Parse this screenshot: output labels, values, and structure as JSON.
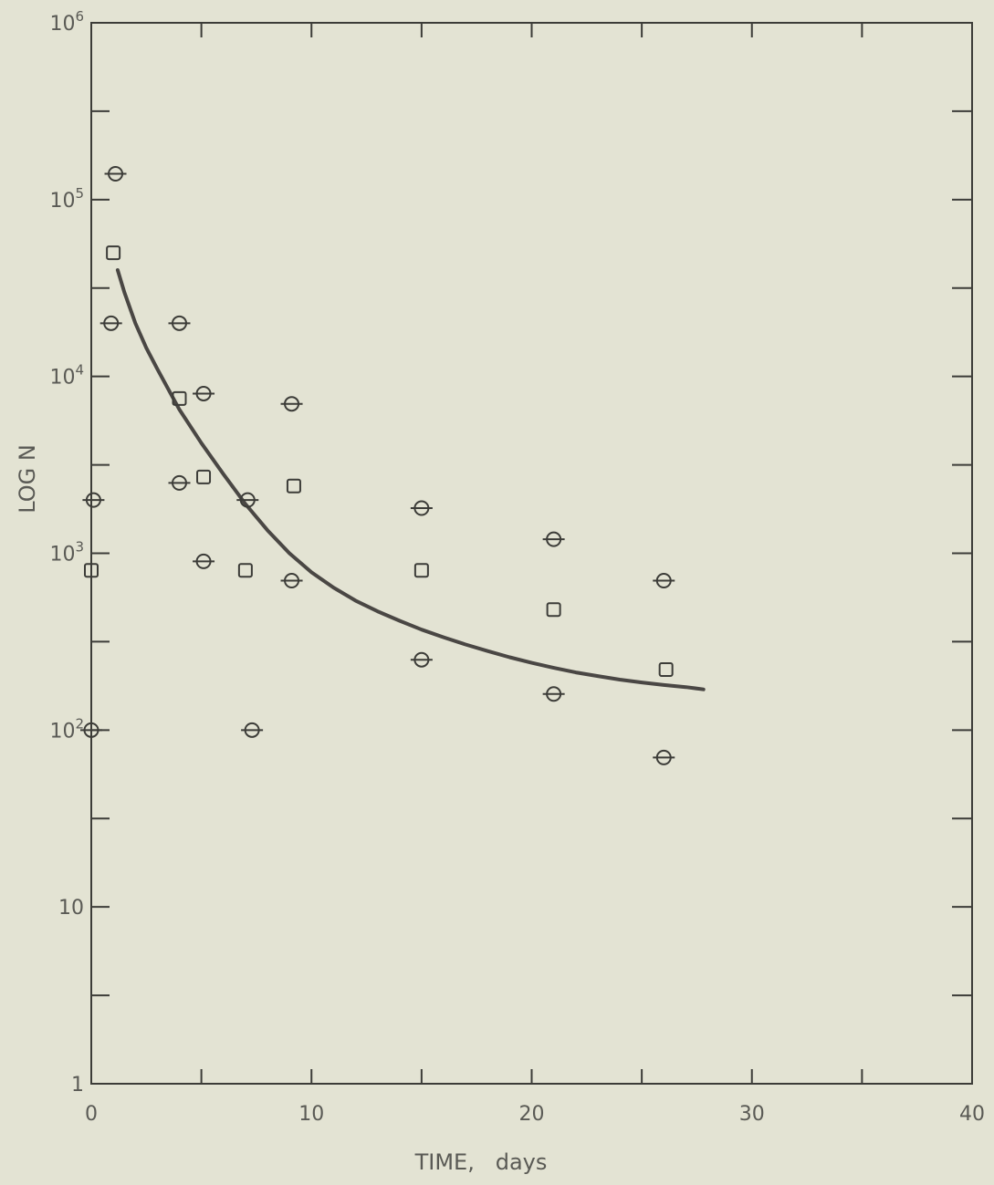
{
  "chart_data": {
    "type": "scatter",
    "title": "",
    "xlabel": "TIME,   days",
    "ylabel": "LOG N",
    "xlim": [
      0,
      40
    ],
    "ylim": [
      1,
      1000000
    ],
    "y_scale": "log",
    "grid": false,
    "x_ticks": [
      {
        "value": 0,
        "label": "0"
      },
      {
        "value": 10,
        "label": "10"
      },
      {
        "value": 20,
        "label": "20"
      },
      {
        "value": 30,
        "label": "30"
      },
      {
        "value": 40,
        "label": "40"
      }
    ],
    "y_ticks": [
      {
        "value": 1,
        "base": "1",
        "exp": ""
      },
      {
        "value": 10,
        "base": "10",
        "exp": ""
      },
      {
        "value": 100,
        "base": "10",
        "exp": "2"
      },
      {
        "value": 1000,
        "base": "10",
        "exp": "3"
      },
      {
        "value": 10000,
        "base": "10",
        "exp": "4"
      },
      {
        "value": 100000,
        "base": "10",
        "exp": "5"
      },
      {
        "value": 1000000,
        "base": "10",
        "exp": "6"
      }
    ],
    "series": [
      {
        "marker": "circle-slash",
        "points": [
          {
            "x": 1.1,
            "y": 140000
          },
          {
            "x": 0.9,
            "y": 20000
          },
          {
            "x": 0.1,
            "y": 2000
          },
          {
            "x": 0.0,
            "y": 100
          },
          {
            "x": 4.0,
            "y": 20000
          },
          {
            "x": 5.1,
            "y": 8000
          },
          {
            "x": 4.0,
            "y": 2500
          },
          {
            "x": 5.1,
            "y": 900
          },
          {
            "x": 7.1,
            "y": 2000
          },
          {
            "x": 7.3,
            "y": 100
          },
          {
            "x": 9.1,
            "y": 7000
          },
          {
            "x": 9.1,
            "y": 700
          },
          {
            "x": 15.0,
            "y": 1800
          },
          {
            "x": 15.0,
            "y": 250
          },
          {
            "x": 21.0,
            "y": 1200
          },
          {
            "x": 21.0,
            "y": 160
          },
          {
            "x": 26.0,
            "y": 700
          },
          {
            "x": 26.0,
            "y": 70
          }
        ]
      },
      {
        "marker": "square",
        "points": [
          {
            "x": 1.0,
            "y": 50000
          },
          {
            "x": 0.0,
            "y": 800
          },
          {
            "x": 4.0,
            "y": 7500
          },
          {
            "x": 5.1,
            "y": 2700
          },
          {
            "x": 7.0,
            "y": 800
          },
          {
            "x": 9.2,
            "y": 2400
          },
          {
            "x": 15.0,
            "y": 800
          },
          {
            "x": 21.0,
            "y": 480
          },
          {
            "x": 26.1,
            "y": 220
          }
        ]
      }
    ],
    "fit_curve": {
      "x": [
        1.2,
        1.5,
        2,
        2.5,
        3,
        4,
        5,
        6,
        7,
        8,
        9,
        10,
        11,
        12,
        13,
        14,
        15,
        16,
        17,
        18,
        19,
        20,
        21,
        22,
        23,
        24,
        25,
        26,
        27,
        27.8
      ],
      "y": [
        40000,
        30000,
        20000,
        14500,
        11000,
        6500,
        4200,
        2800,
        1900,
        1350,
        1000,
        780,
        640,
        540,
        470,
        415,
        370,
        335,
        305,
        280,
        258,
        240,
        225,
        212,
        202,
        193,
        186,
        180,
        175,
        170
      ]
    }
  }
}
